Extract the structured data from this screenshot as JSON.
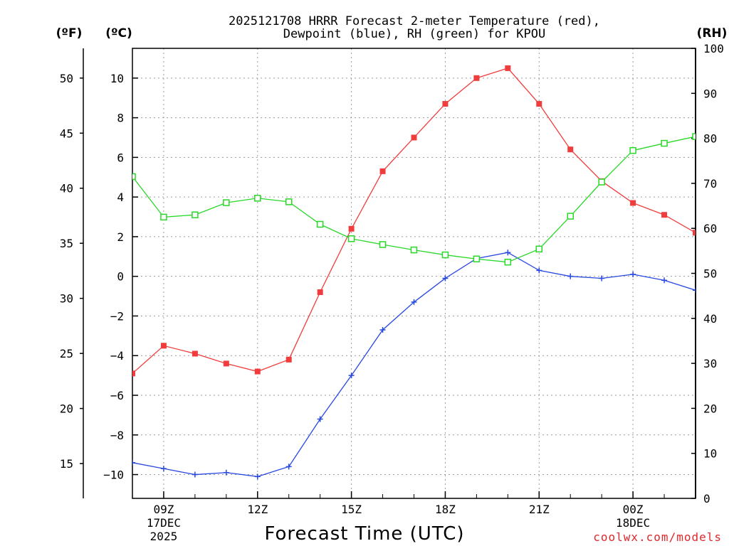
{
  "chart_data": {
    "type": "line",
    "title_line1": "2025121708 HRRR Forecast 2-meter Temperature (red),",
    "title_line2": "Dewpoint (blue), RH (green) for KPOU",
    "xlabel": "Forecast Time (UTC)",
    "unit_f": "(ºF)",
    "unit_c": "(ºC)",
    "unit_rh": "(RH)",
    "credit": "coolwx.com/models",
    "x": [
      "08Z",
      "09Z",
      "10Z",
      "11Z",
      "12Z",
      "13Z",
      "14Z",
      "15Z",
      "16Z",
      "17Z",
      "18Z",
      "19Z",
      "20Z",
      "21Z",
      "22Z",
      "23Z",
      "00Z",
      "01Z",
      "02Z"
    ],
    "x_ticks": [
      {
        "label": "09Z",
        "sub1": "17DEC",
        "sub2": "2025",
        "index": 1
      },
      {
        "label": "12Z",
        "sub1": "",
        "sub2": "",
        "index": 4
      },
      {
        "label": "15Z",
        "sub1": "",
        "sub2": "",
        "index": 7
      },
      {
        "label": "18Z",
        "sub1": "",
        "sub2": "",
        "index": 10
      },
      {
        "label": "21Z",
        "sub1": "",
        "sub2": "",
        "index": 13
      },
      {
        "label": "00Z",
        "sub1": "18DEC",
        "sub2": "",
        "index": 16
      }
    ],
    "ylim_c": [
      -11.2,
      11.5
    ],
    "ylim_rh": [
      0,
      100
    ],
    "c_ticks": [
      "10",
      "8",
      "6",
      "4",
      "2",
      "0",
      "−2",
      "−4",
      "−6",
      "−8",
      "−10"
    ],
    "c_tick_values": [
      10,
      8,
      6,
      4,
      2,
      0,
      -2,
      -4,
      -6,
      -8,
      -10
    ],
    "f_ticks": [
      "50",
      "45",
      "40",
      "35",
      "30",
      "25",
      "20",
      "15"
    ],
    "f_tick_values": [
      50,
      45,
      40,
      35,
      30,
      25,
      20,
      15
    ],
    "rh_ticks": [
      "100",
      "90",
      "80",
      "70",
      "60",
      "50",
      "40",
      "30",
      "20",
      "10",
      "0"
    ],
    "rh_tick_values": [
      100,
      90,
      80,
      70,
      60,
      50,
      40,
      30,
      20,
      10,
      0
    ],
    "series": [
      {
        "name": "Temperature",
        "color": "#f03c3c",
        "marker": "filled-square",
        "axis": "C",
        "values": [
          -4.9,
          -3.5,
          -3.9,
          -4.4,
          -4.8,
          -4.2,
          -0.8,
          2.4,
          5.3,
          7.0,
          8.7,
          10.0,
          10.5,
          8.7,
          6.4,
          4.8,
          3.7,
          3.1,
          2.2
        ]
      },
      {
        "name": "Dewpoint",
        "color": "#2848e0",
        "marker": "plus",
        "axis": "C",
        "values": [
          -9.4,
          -9.7,
          -10.0,
          -9.9,
          -10.1,
          -9.6,
          -7.2,
          -5.0,
          -2.7,
          -1.3,
          -0.1,
          0.9,
          1.2,
          0.3,
          0.0,
          -0.1,
          0.1,
          -0.2,
          -0.7
        ]
      },
      {
        "name": "RH",
        "color": "#28d828",
        "marker": "open-square",
        "axis": "RH",
        "values": [
          71.5,
          62.5,
          63.0,
          65.7,
          66.7,
          65.9,
          60.9,
          57.7,
          56.4,
          55.2,
          54.1,
          53.2,
          52.5,
          55.4,
          62.7,
          70.3,
          77.3,
          78.9,
          80.4
        ]
      }
    ]
  }
}
